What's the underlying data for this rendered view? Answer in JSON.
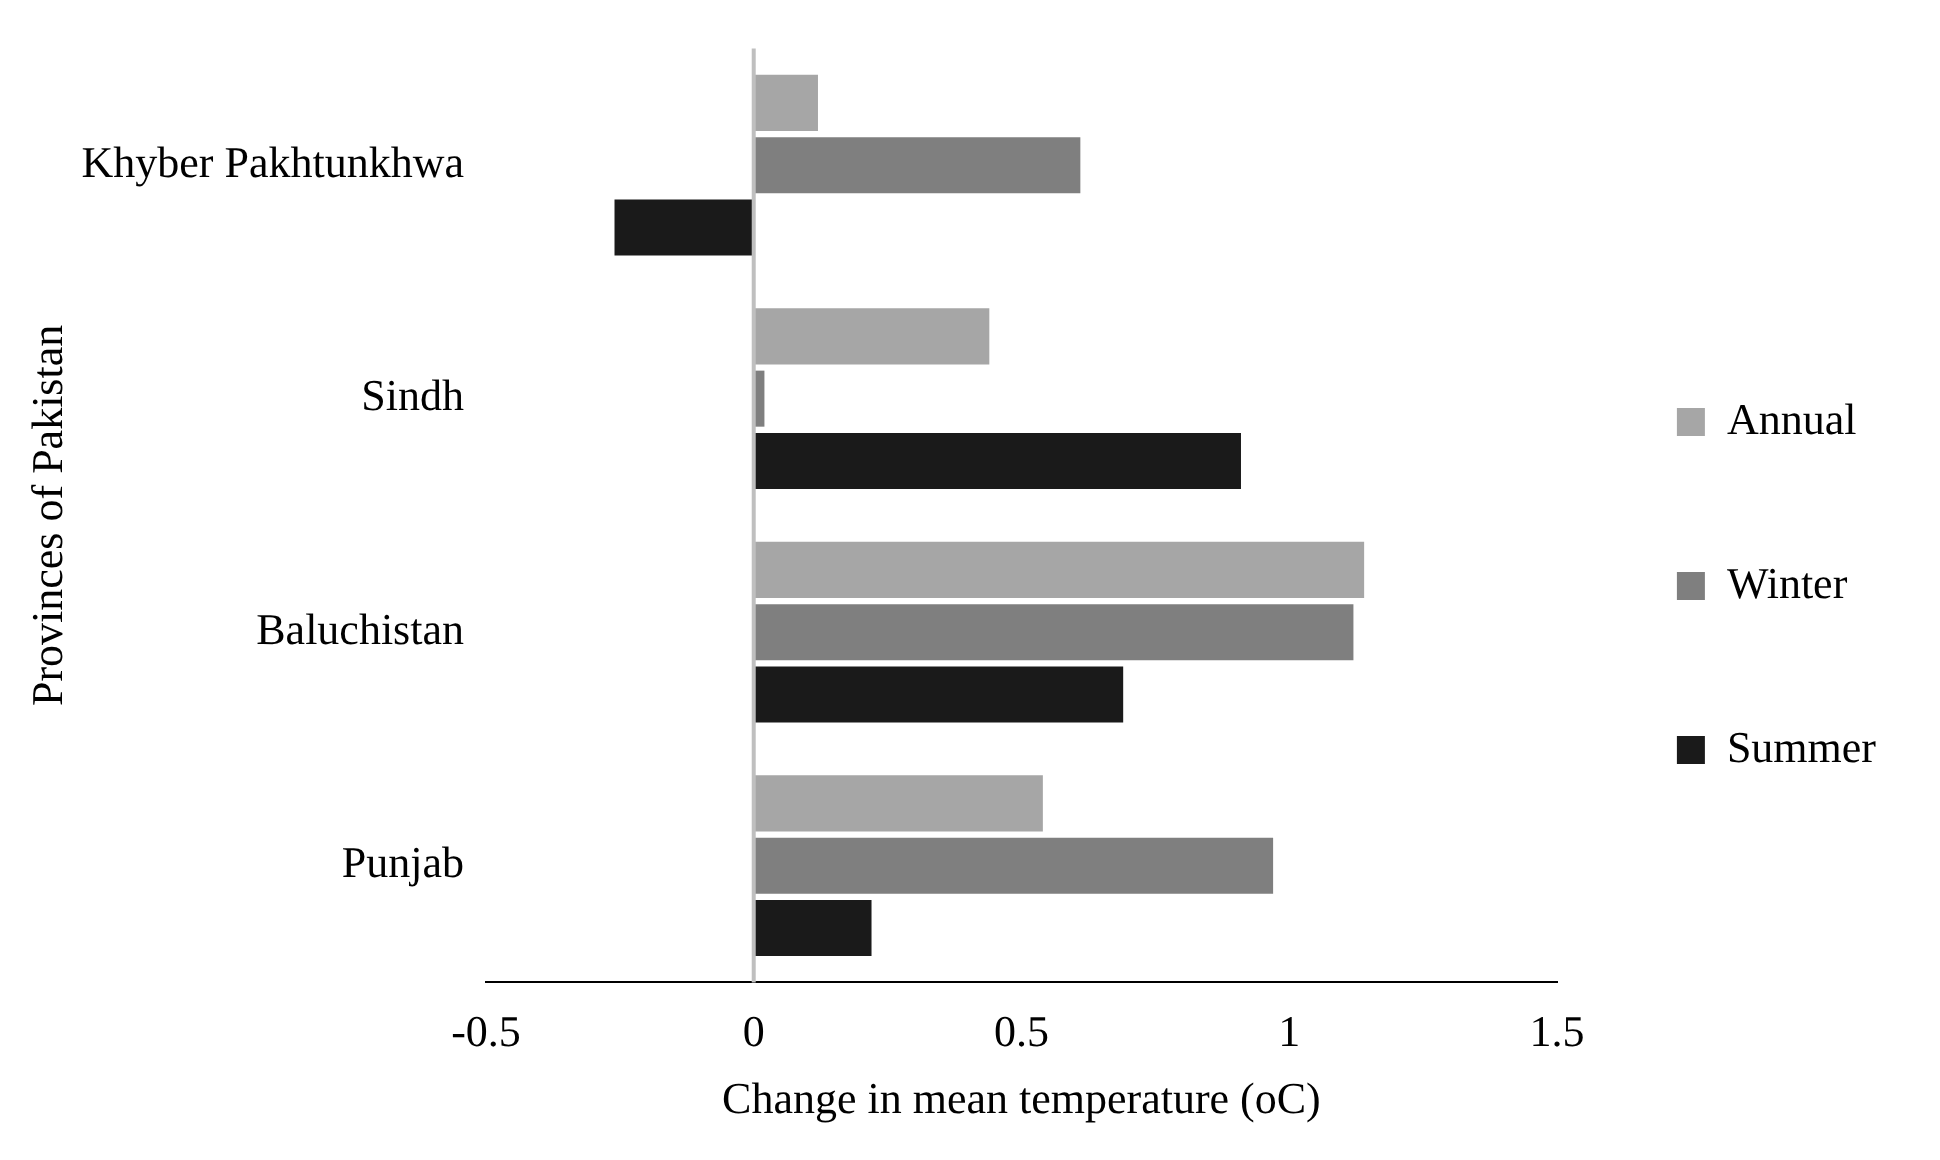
{
  "chart_data": {
    "type": "bar",
    "orientation": "horizontal",
    "xlabel": "Change in mean temperature (oC)",
    "ylabel": "Provinces of Pakistan",
    "categories": [
      "Khyber Pakhtunkhwa",
      "Sindh",
      "Baluchistan",
      "Punjab"
    ],
    "series": [
      {
        "name": "Annual",
        "color": "#a6a6a6",
        "values": [
          0.12,
          0.44,
          1.14,
          0.54
        ]
      },
      {
        "name": "Winter",
        "color": "#7f7f7f",
        "values": [
          0.61,
          0.02,
          1.12,
          0.97
        ]
      },
      {
        "name": "Summer",
        "color": "#1a1a1a",
        "values": [
          -0.26,
          0.91,
          0.69,
          0.22
        ]
      }
    ],
    "xlim": [
      -0.5,
      1.5
    ],
    "xticks": [
      -0.5,
      0,
      0.5,
      1,
      1.5
    ],
    "grid": false,
    "legend": "right",
    "ref_lines": [
      {
        "axis": "x",
        "value": 0,
        "color": "#bfbfbf"
      }
    ]
  }
}
